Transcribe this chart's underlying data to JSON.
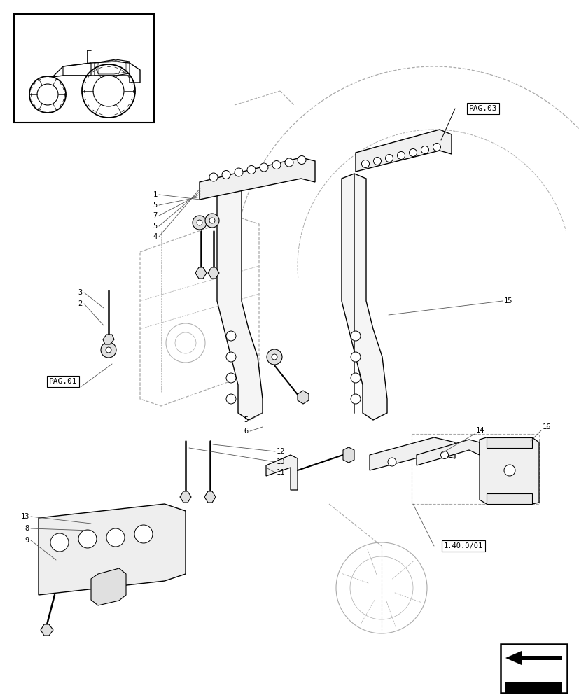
{
  "bg_color": "#ffffff",
  "line_color": "#000000",
  "dashed_color": "#aaaaaa",
  "label_fontsize": 7.5,
  "fig_width": 8.28,
  "fig_height": 10.0,
  "labels": {
    "pag03": "PAG.03",
    "pag01": "PAG.01",
    "ref140": "1.40.0/01"
  }
}
